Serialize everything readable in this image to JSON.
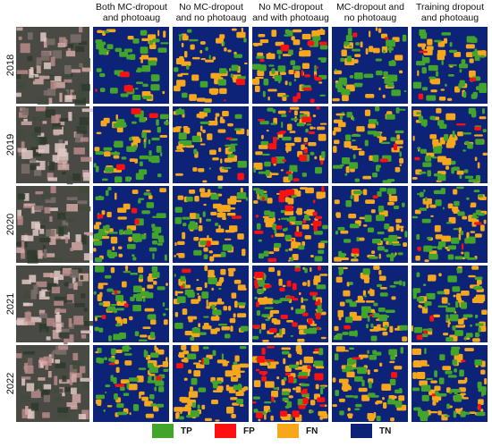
{
  "columns": [
    "Both MC-dropout and photoaug",
    "No MC-dropout and no photoaug",
    "No MC-dropout and with photoaug",
    "MC-dropout and no photoaug",
    "Training dropout and photoaug"
  ],
  "rows": [
    "2018",
    "2019",
    "2020",
    "2021",
    "2022"
  ],
  "legend": [
    {
      "label": "TP",
      "color": "#43a42c"
    },
    {
      "label": "FP",
      "color": "#ff1010"
    },
    {
      "label": "FN",
      "color": "#f6a71c"
    },
    {
      "label": "TN",
      "color": "#0c2377"
    }
  ]
}
